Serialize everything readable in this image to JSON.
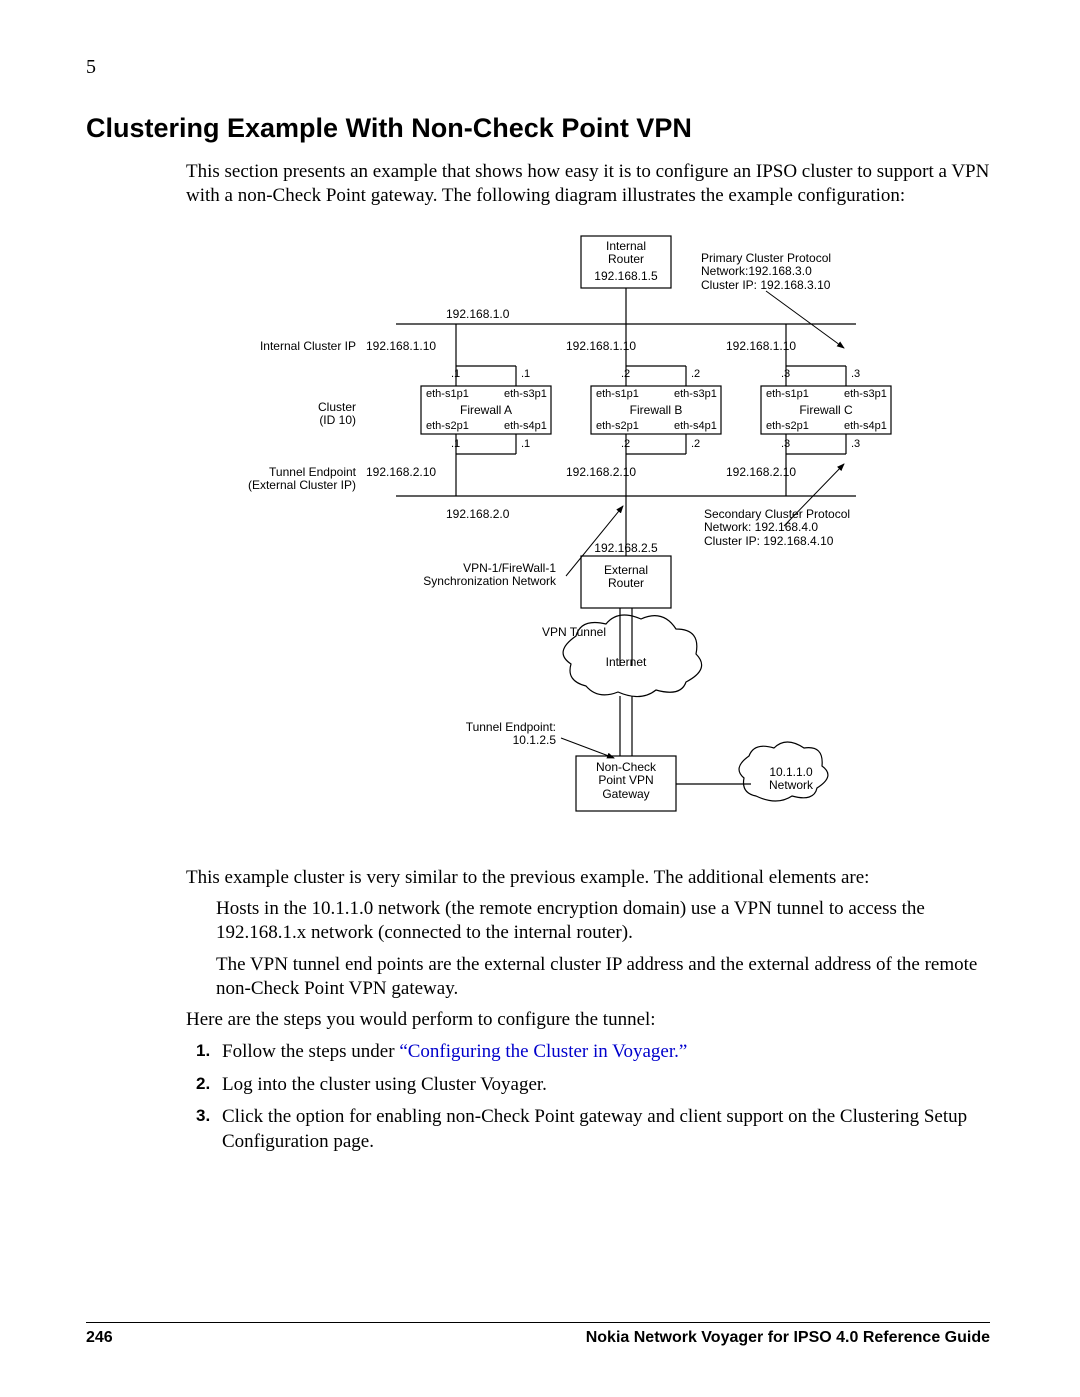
{
  "chapter": "5",
  "title": "Clustering Example With Non-Check Point VPN",
  "intro": "This section presents an example that shows how easy it is to configure an IPSO cluster to support a VPN with a non-Check Point gateway. The following diagram illustrates the example configuration:",
  "after_diagram": "This example cluster is very similar to the previous example. The additional elements are:",
  "bullets": [
    "Hosts in the 10.1.1.0 network (the remote encryption domain) use a VPN tunnel to access the 192.168.1.x network (connected to the internal router).",
    "The VPN tunnel end points are the external cluster IP address and the external address of the remote non-Check Point VPN gateway."
  ],
  "steps_intro": "Here are the steps you would perform to configure the tunnel:",
  "link_text": "“Configuring the Cluster in Voyager.”",
  "steps": [
    "Follow the steps under ",
    "Log into the cluster using Cluster Voyager.",
    "Click the option for enabling non-Check Point gateway and client support on the Clustering Setup Configuration page."
  ],
  "footer": {
    "page": "246",
    "doc": "Nokia Network Voyager for IPSO 4.0 Reference Guide"
  },
  "diagram": {
    "internal_router": "Internal\nRouter",
    "internal_router_ip": "192.168.1.5",
    "primary_proto": "Primary Cluster Protocol\nNetwork:192.168.3.0\nCluster IP:  192.168.3.10",
    "net_top": "192.168.1.0",
    "internal_cluster_ip_lbl": "Internal Cluster IP",
    "ip110a": "192.168.1.10",
    "ip110b": "192.168.1.10",
    "ip110c": "192.168.1.10",
    "cluster_lbl": "Cluster\n(ID 10)",
    "fwA": "Firewall A",
    "fwB": "Firewall B",
    "fwC": "Firewall C",
    "eth_s1p1": "eth-s1p1",
    "eth_s3p1": "eth-s3p1",
    "eth_s2p1": "eth-s2p1",
    "eth_s4p1": "eth-s4p1",
    "d1": ".1",
    "d2": ".2",
    "d3": ".3",
    "tunnel_ep_lbl": "Tunnel Endpoint\n(External Cluster IP)",
    "ip210a": "192.168.2.10",
    "ip210b": "192.168.2.10",
    "ip210c": "192.168.2.10",
    "net_bottom": "192.168.2.0",
    "secondary_proto": "Secondary Cluster Protocol\nNetwork: 192.168.4.0\nCluster IP:  192.168.4.10",
    "ext_router_ip": "192.168.2.5",
    "ext_router": "External\nRouter",
    "sync_net": "VPN-1/FireWall-1\nSynchronization Network",
    "vpn_tunnel": "VPN Tunnel",
    "internet": "Internet",
    "tunnel_ep2": "Tunnel Endpoint:\n10.1.2.5",
    "noncp": "Non-Check\nPoint VPN\nGateway",
    "remote_net": "10.1.1.0\nNetwork"
  }
}
